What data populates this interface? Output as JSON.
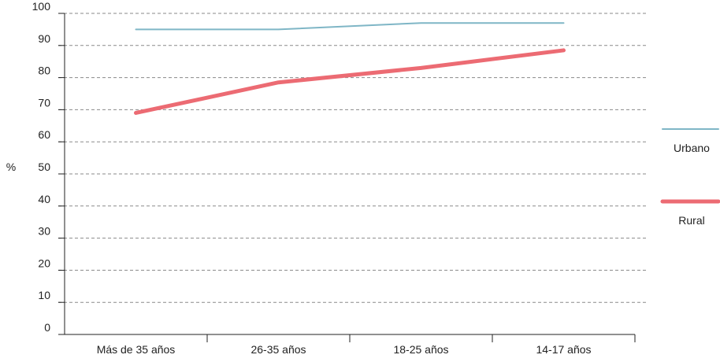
{
  "chart_data": {
    "type": "line",
    "categories": [
      "Más de 35 años",
      "26-35 años",
      "18-25 años",
      "14-17 años"
    ],
    "series": [
      {
        "name": "Urbano",
        "values": [
          95,
          95,
          97,
          97
        ],
        "color": "#7fb6c6"
      },
      {
        "name": "Rural",
        "values": [
          69,
          78.5,
          83,
          88.5
        ],
        "color": "#ec6b73"
      }
    ],
    "ylabel": "%",
    "ylim": [
      0,
      100
    ],
    "yticks": [
      0,
      10,
      20,
      30,
      40,
      50,
      60,
      70,
      80,
      90,
      100
    ],
    "grid": true,
    "legend_position": "right"
  }
}
